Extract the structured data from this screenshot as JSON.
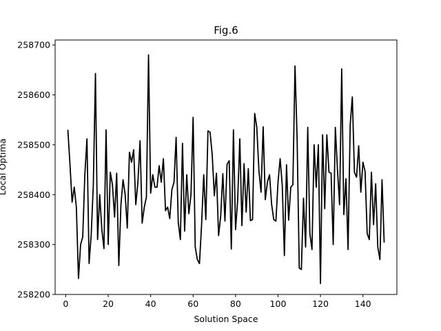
{
  "chart_data": {
    "type": "line",
    "title": "Fig.6",
    "xlabel": "Solution Space",
    "ylabel": "Local Optima",
    "xlim": [
      -5,
      156
    ],
    "ylim": [
      258200,
      258710
    ],
    "xticks": [
      0,
      20,
      40,
      60,
      80,
      100,
      120,
      140
    ],
    "yticks": [
      258200,
      258300,
      258400,
      258500,
      258600,
      258700
    ],
    "grid": false,
    "legend": "none",
    "line_color": "#000000",
    "series": [
      {
        "x": [
          1,
          2,
          3,
          4,
          5,
          6,
          7,
          8,
          9,
          10,
          11,
          12,
          13,
          14,
          15,
          16,
          17,
          18,
          19,
          20,
          21,
          22,
          23,
          24,
          25,
          26,
          27,
          28,
          29,
          30,
          31,
          32,
          33,
          34,
          35,
          36,
          37,
          38,
          39,
          40,
          41,
          42,
          43,
          44,
          45,
          46,
          47,
          48,
          49,
          50,
          51,
          52,
          53,
          54,
          55,
          56,
          57,
          58,
          59,
          60,
          61,
          62,
          63,
          64,
          65,
          66,
          67,
          68,
          69,
          70,
          71,
          72,
          73,
          74,
          75,
          76,
          77,
          78,
          79,
          80,
          81,
          82,
          83,
          84,
          85,
          86,
          87,
          88,
          89,
          90,
          91,
          92,
          93,
          94,
          95,
          96,
          97,
          98,
          99,
          100,
          101,
          102,
          103,
          104,
          105,
          106,
          107,
          108,
          109,
          110,
          111,
          112,
          113,
          114,
          115,
          116,
          117,
          118,
          119,
          120,
          121,
          122,
          123,
          124,
          125,
          126,
          127,
          128,
          129,
          130,
          131,
          132,
          133,
          134,
          135,
          136,
          137,
          138,
          139,
          140,
          141,
          142,
          143,
          144,
          145,
          146,
          147,
          148,
          149,
          150
        ],
        "values": [
          258530,
          258460,
          258385,
          258415,
          258375,
          258232,
          258300,
          258315,
          258440,
          258512,
          258262,
          258320,
          258420,
          258643,
          258310,
          258400,
          258330,
          258292,
          258530,
          258300,
          258445,
          258420,
          258355,
          258443,
          258258,
          258380,
          258430,
          258400,
          258333,
          258485,
          258465,
          258490,
          258380,
          258425,
          258508,
          258343,
          258375,
          258395,
          258680,
          258403,
          258440,
          258415,
          258415,
          258458,
          258425,
          258472,
          258368,
          258375,
          258352,
          258410,
          258425,
          258515,
          258345,
          258310,
          258503,
          258327,
          258440,
          258362,
          258400,
          258555,
          258295,
          258270,
          258262,
          258340,
          258440,
          258350,
          258528,
          258525,
          258480,
          258398,
          258443,
          258318,
          258357,
          258442,
          258347,
          258461,
          258468,
          258291,
          258530,
          258330,
          258390,
          258512,
          258338,
          258462,
          258365,
          258452,
          258348,
          258350,
          258563,
          258535,
          258448,
          258405,
          258536,
          258390,
          258425,
          258440,
          258380,
          258350,
          258347,
          258425,
          258472,
          258418,
          258278,
          258460,
          258349,
          258415,
          258420,
          258658,
          258512,
          258253,
          258250,
          258393,
          258295,
          258535,
          258322,
          258290,
          258500,
          258415,
          258500,
          258222,
          258520,
          258372,
          258520,
          258445,
          258443,
          258300,
          258535,
          258450,
          258380,
          258652,
          258360,
          258432,
          258290,
          258540,
          258596,
          258445,
          258435,
          258498,
          258405,
          258465,
          258447,
          258322,
          258310,
          258445,
          258340,
          258422,
          258295,
          258270,
          258430,
          258304
        ]
      }
    ]
  }
}
